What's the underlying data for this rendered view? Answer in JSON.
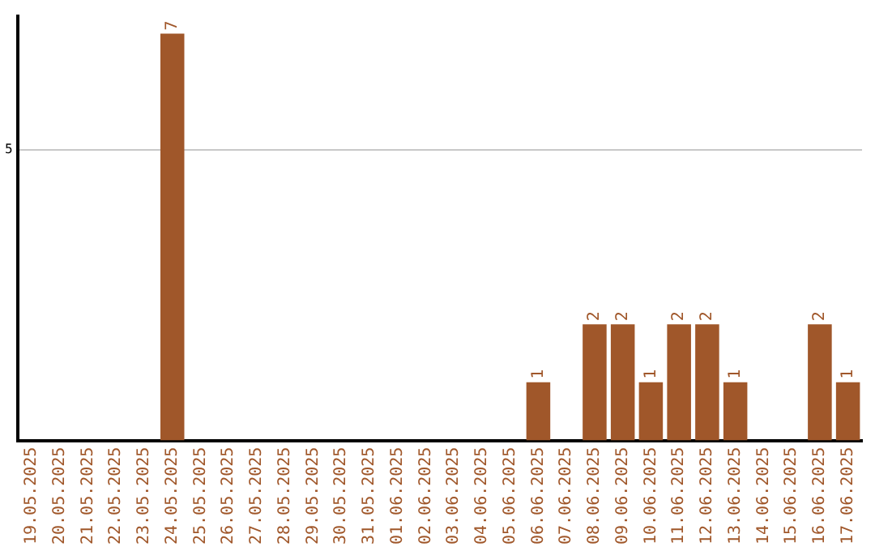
{
  "chart_data": {
    "type": "bar",
    "categories": [
      "19.05.2025",
      "20.05.2025",
      "21.05.2025",
      "22.05.2025",
      "23.05.2025",
      "24.05.2025",
      "25.05.2025",
      "26.05.2025",
      "27.05.2025",
      "28.05.2025",
      "29.05.2025",
      "30.05.2025",
      "31.05.2025",
      "01.06.2025",
      "02.06.2025",
      "03.06.2025",
      "04.06.2025",
      "05.06.2025",
      "06.06.2025",
      "07.06.2025",
      "08.06.2025",
      "09.06.2025",
      "10.06.2025",
      "11.06.2025",
      "12.06.2025",
      "13.06.2025",
      "14.06.2025",
      "15.06.2025",
      "16.06.2025",
      "17.06.2025"
    ],
    "values": [
      0,
      0,
      0,
      0,
      0,
      7,
      0,
      0,
      0,
      0,
      0,
      0,
      0,
      0,
      0,
      0,
      0,
      0,
      1,
      0,
      2,
      2,
      1,
      2,
      2,
      1,
      0,
      0,
      2,
      1
    ],
    "value_labels": [
      null,
      null,
      null,
      null,
      null,
      "7",
      null,
      null,
      null,
      null,
      null,
      null,
      null,
      null,
      null,
      null,
      null,
      null,
      "1",
      null,
      "2",
      "2",
      "1",
      "2",
      "2",
      "1",
      null,
      null,
      "2",
      "1"
    ],
    "color": "#a0572a",
    "ylim": [
      0,
      7.3
    ],
    "yticks": [
      5
    ],
    "grid": "y"
  }
}
